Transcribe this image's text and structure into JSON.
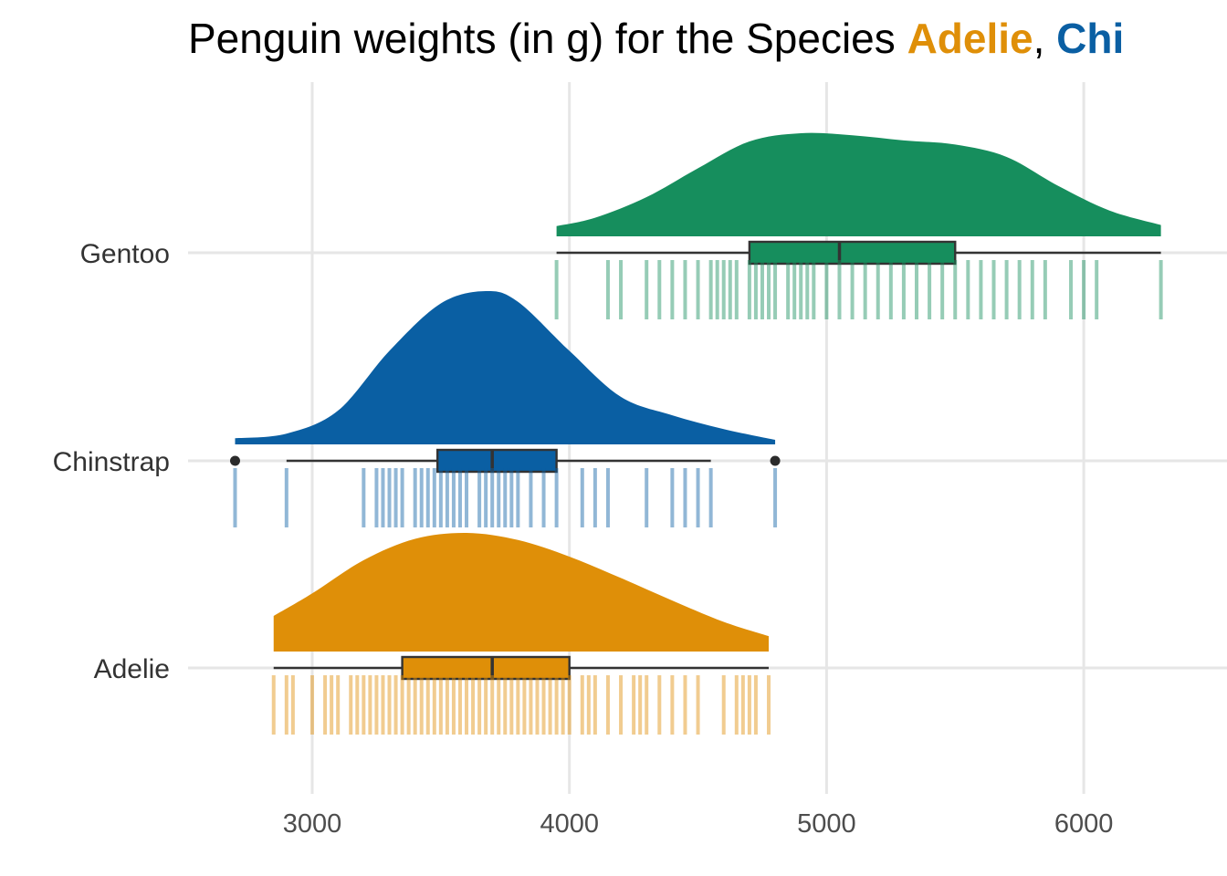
{
  "chart_data": {
    "type": "raincloud",
    "title_prefix": "Penguin weights (in g) for the Species ",
    "title_species": [
      {
        "name": "Adelie",
        "color": "#DF8F08"
      },
      {
        "name": "Chi",
        "color": "#0A5FA3"
      }
    ],
    "title_sep": ", ",
    "xlabel": "",
    "ylabel": "",
    "xlim": [
      2500,
      6300
    ],
    "x_ticks": [
      3000,
      4000,
      5000,
      6000
    ],
    "x_tick_labels": [
      "3000",
      "4000",
      "5000",
      "6000"
    ],
    "grid": true,
    "legend": "none",
    "categories": [
      "Adelie",
      "Chinstrap",
      "Gentoo"
    ],
    "series": [
      {
        "name": "Adelie",
        "color": "#DF8F08",
        "box": {
          "whisker_low": 2850,
          "q1": 3350,
          "median": 3700,
          "q3": 4000,
          "whisker_high": 4775
        },
        "outliers": [],
        "density": [
          [
            2850,
            0.3
          ],
          [
            3000,
            0.49
          ],
          [
            3200,
            0.77
          ],
          [
            3400,
            0.95
          ],
          [
            3600,
            1.0
          ],
          [
            3800,
            0.94
          ],
          [
            4000,
            0.8
          ],
          [
            4200,
            0.62
          ],
          [
            4400,
            0.43
          ],
          [
            4600,
            0.25
          ],
          [
            4775,
            0.13
          ]
        ],
        "observations": [
          2850,
          2900,
          2925,
          3000,
          3050,
          3075,
          3100,
          3150,
          3175,
          3200,
          3225,
          3250,
          3275,
          3300,
          3325,
          3350,
          3375,
          3400,
          3425,
          3450,
          3475,
          3500,
          3525,
          3550,
          3575,
          3600,
          3625,
          3650,
          3675,
          3700,
          3725,
          3750,
          3775,
          3800,
          3825,
          3850,
          3875,
          3900,
          3925,
          3950,
          3975,
          4000,
          4050,
          4075,
          4100,
          4150,
          4200,
          4250,
          4275,
          4300,
          4350,
          4400,
          4450,
          4500,
          4600,
          4650,
          4675,
          4700,
          4725,
          4775
        ]
      },
      {
        "name": "Chinstrap",
        "color": "#0A5FA3",
        "box": {
          "whisker_low": 2900,
          "q1": 3487,
          "median": 3700,
          "q3": 3950,
          "whisker_high": 4550
        },
        "outliers": [
          2700,
          4800
        ],
        "density": [
          [
            2700,
            0.04
          ],
          [
            2900,
            0.07
          ],
          [
            3100,
            0.22
          ],
          [
            3300,
            0.61
          ],
          [
            3500,
            0.92
          ],
          [
            3675,
            1.0
          ],
          [
            3800,
            0.93
          ],
          [
            4000,
            0.61
          ],
          [
            4200,
            0.31
          ],
          [
            4400,
            0.19
          ],
          [
            4600,
            0.1
          ],
          [
            4800,
            0.03
          ]
        ],
        "observations": [
          2700,
          2900,
          3200,
          3250,
          3275,
          3300,
          3325,
          3350,
          3400,
          3425,
          3450,
          3475,
          3500,
          3525,
          3550,
          3575,
          3600,
          3650,
          3675,
          3700,
          3725,
          3750,
          3775,
          3800,
          3850,
          3900,
          3950,
          4050,
          4100,
          4150,
          4300,
          4400,
          4450,
          4500,
          4550,
          4800
        ]
      },
      {
        "name": "Gentoo",
        "color": "#168E5D",
        "box": {
          "whisker_low": 3950,
          "q1": 4700,
          "median": 5050,
          "q3": 5500,
          "whisker_high": 6300
        },
        "outliers": [],
        "density": [
          [
            3950,
            0.1
          ],
          [
            4100,
            0.18
          ],
          [
            4300,
            0.38
          ],
          [
            4500,
            0.66
          ],
          [
            4700,
            0.92
          ],
          [
            4900,
            1.0
          ],
          [
            5100,
            0.98
          ],
          [
            5300,
            0.93
          ],
          [
            5500,
            0.89
          ],
          [
            5700,
            0.77
          ],
          [
            5900,
            0.49
          ],
          [
            6100,
            0.25
          ],
          [
            6300,
            0.11
          ]
        ],
        "observations": [
          3950,
          4150,
          4200,
          4300,
          4350,
          4400,
          4450,
          4500,
          4550,
          4575,
          4600,
          4625,
          4650,
          4700,
          4725,
          4750,
          4775,
          4800,
          4850,
          4875,
          4900,
          4925,
          4950,
          5000,
          5050,
          5100,
          5150,
          5200,
          5250,
          5300,
          5350,
          5400,
          5450,
          5500,
          5550,
          5600,
          5650,
          5700,
          5750,
          5800,
          5850,
          5950,
          6000,
          6050,
          6300
        ]
      }
    ]
  }
}
